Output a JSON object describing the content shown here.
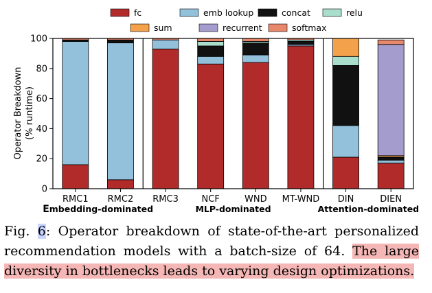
{
  "chart_data": {
    "type": "bar",
    "stacked": true,
    "ylabel_line1": "Operator Breakdown",
    "ylabel_line2": "(% runtime)",
    "ylim": [
      0,
      100
    ],
    "yticks": [
      "0",
      "20",
      "40",
      "60",
      "80",
      "100"
    ],
    "grid": false,
    "legend_position": "top",
    "categories": [
      "RMC1",
      "RMC2",
      "RMC3",
      "NCF",
      "WND",
      "MT-WND",
      "DIN",
      "DIEN"
    ],
    "groups": [
      {
        "first_letter": "E",
        "rest": "mbedding-dominated",
        "categories": [
          "RMC1",
          "RMC2"
        ]
      },
      {
        "first_letter": "",
        "rest": "MLP-dominated",
        "categories": [
          "RMC3",
          "NCF",
          "WND",
          "MT-WND"
        ]
      },
      {
        "first_letter": "",
        "rest": "Attention-dominated",
        "categories": [
          "DIN",
          "DIEN"
        ]
      }
    ],
    "series": [
      {
        "name": "fc",
        "color": "#b22b2b",
        "values": [
          16,
          6,
          93,
          83,
          84,
          95,
          21,
          17
        ]
      },
      {
        "name": "emb lookup",
        "color": "#93c1dc",
        "values": [
          82,
          91,
          6,
          5,
          5,
          1,
          21,
          2
        ]
      },
      {
        "name": "concat",
        "color": "#111111",
        "values": [
          1,
          2,
          0,
          7,
          8,
          2,
          40,
          2
        ]
      },
      {
        "name": "relu",
        "color": "#a8decb",
        "values": [
          0,
          0,
          0,
          3,
          1,
          1,
          6,
          0
        ]
      },
      {
        "name": "sum",
        "color": "#f4a14c",
        "values": [
          0,
          0,
          0,
          0,
          0,
          0,
          12,
          1
        ]
      },
      {
        "name": "recurrent",
        "color": "#a49ccd",
        "values": [
          0,
          0,
          0,
          0,
          0,
          0,
          0,
          74
        ]
      },
      {
        "name": "softmax",
        "color": "#e7876b",
        "values": [
          1,
          1,
          1,
          2,
          2,
          1,
          0,
          3
        ]
      }
    ]
  },
  "caption": {
    "fig_label": "Fig. ",
    "fig_number": "6",
    "body": ": Operator breakdown of state-of-the-art personalized recommendation models with a batch-size of 64. ",
    "highlighted": "The large diversity in bottlenecks leads to varying design optimizations."
  }
}
